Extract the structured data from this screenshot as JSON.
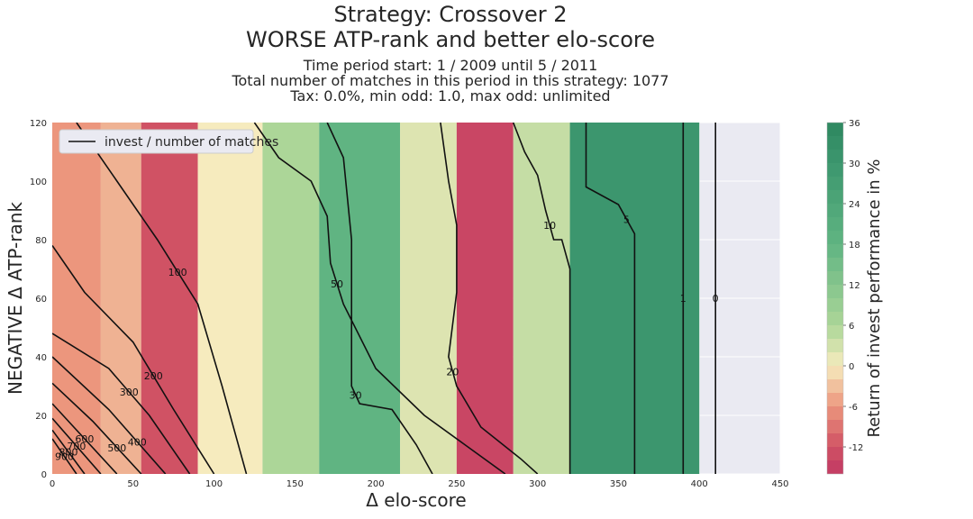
{
  "header": {
    "title_line1": "Strategy: Crossover 2",
    "title_line2": "WORSE ATP-rank and better elo-score",
    "subtitle_line1": "Time period start: 1 / 2009 until 5 / 2011",
    "subtitle_line2": "Total number of matches in this period in this strategy: 1077",
    "subtitle_line3": "Tax: 0.0%, min odd: 1.0, max odd: unlimited"
  },
  "chart_data": {
    "type": "heatmap",
    "xlabel": "Δ elo-score",
    "ylabel": "NEGATIVE Δ ATP-rank",
    "xlim": [
      0,
      450
    ],
    "ylim": [
      0,
      120
    ],
    "x_ticks": [
      0,
      50,
      100,
      150,
      200,
      250,
      300,
      350,
      400,
      450
    ],
    "y_ticks": [
      0,
      20,
      40,
      60,
      80,
      100,
      120
    ],
    "colorbar": {
      "label": "Return of invest performance in %",
      "ticks": [
        -12,
        -6,
        0,
        6,
        12,
        18,
        24,
        30,
        36
      ],
      "range": [
        -16,
        36
      ]
    },
    "legend": {
      "entry": "invest / number of matches",
      "position": "top-left"
    },
    "return_bands": [
      {
        "x_range": [
          0,
          30
        ],
        "value": -6
      },
      {
        "x_range": [
          30,
          55
        ],
        "value": -4
      },
      {
        "x_range": [
          55,
          90
        ],
        "value": -12
      },
      {
        "x_range": [
          90,
          130
        ],
        "value": 0
      },
      {
        "x_range": [
          130,
          165
        ],
        "value": 6
      },
      {
        "x_range": [
          165,
          215
        ],
        "value": 18
      },
      {
        "x_range": [
          215,
          250
        ],
        "value": 2
      },
      {
        "x_range": [
          250,
          285
        ],
        "value": -14
      },
      {
        "x_range": [
          285,
          320
        ],
        "value": 4
      },
      {
        "x_range": [
          320,
          400
        ],
        "value": 30
      }
    ],
    "count_contours": [
      {
        "label": "900",
        "points": [
          [
            0,
            12
          ],
          [
            15,
            0
          ]
        ]
      },
      {
        "label": "800",
        "points": [
          [
            0,
            15
          ],
          [
            20,
            0
          ]
        ]
      },
      {
        "label": "700",
        "points": [
          [
            0,
            19
          ],
          [
            30,
            0
          ]
        ]
      },
      {
        "label": "600",
        "points": [
          [
            0,
            24
          ],
          [
            40,
            0
          ]
        ]
      },
      {
        "label": "500",
        "points": [
          [
            0,
            31
          ],
          [
            25,
            18
          ],
          [
            55,
            0
          ]
        ]
      },
      {
        "label": "400",
        "points": [
          [
            0,
            40
          ],
          [
            35,
            22
          ],
          [
            70,
            0
          ]
        ]
      },
      {
        "label": "300",
        "points": [
          [
            0,
            48
          ],
          [
            35,
            36
          ],
          [
            60,
            20
          ],
          [
            85,
            0
          ]
        ]
      },
      {
        "label": "200",
        "points": [
          [
            0,
            78
          ],
          [
            20,
            62
          ],
          [
            50,
            45
          ],
          [
            75,
            22
          ],
          [
            100,
            0
          ]
        ]
      },
      {
        "label": "100",
        "points": [
          [
            15,
            120
          ],
          [
            40,
            100
          ],
          [
            65,
            80
          ],
          [
            90,
            58
          ],
          [
            105,
            30
          ],
          [
            120,
            0
          ]
        ]
      },
      {
        "label": "50",
        "points": [
          [
            125,
            120
          ],
          [
            140,
            108
          ],
          [
            160,
            100
          ],
          [
            170,
            88
          ],
          [
            172,
            72
          ],
          [
            180,
            58
          ],
          [
            200,
            36
          ],
          [
            230,
            20
          ],
          [
            255,
            10
          ],
          [
            280,
            0
          ]
        ]
      },
      {
        "label": "30",
        "points": [
          [
            170,
            120
          ],
          [
            180,
            108
          ],
          [
            185,
            80
          ],
          [
            185,
            60
          ],
          [
            185,
            30
          ],
          [
            190,
            24
          ],
          [
            210,
            22
          ],
          [
            225,
            10
          ],
          [
            235,
            0
          ]
        ]
      },
      {
        "label": "20",
        "points": [
          [
            240,
            120
          ],
          [
            245,
            100
          ],
          [
            250,
            85
          ],
          [
            250,
            62
          ],
          [
            245,
            40
          ],
          [
            250,
            30
          ],
          [
            265,
            16
          ],
          [
            290,
            5
          ],
          [
            300,
            0
          ]
        ]
      },
      {
        "label": "10",
        "points": [
          [
            285,
            120
          ],
          [
            292,
            110
          ],
          [
            300,
            102
          ],
          [
            305,
            90
          ],
          [
            310,
            80
          ],
          [
            315,
            80
          ],
          [
            320,
            70
          ],
          [
            320,
            0
          ]
        ]
      },
      {
        "label": "5",
        "points": [
          [
            330,
            120
          ],
          [
            330,
            98
          ],
          [
            350,
            92
          ],
          [
            360,
            82
          ],
          [
            360,
            0
          ]
        ]
      },
      {
        "label": "1",
        "points": [
          [
            390,
            120
          ],
          [
            390,
            0
          ]
        ]
      },
      {
        "label": "0",
        "points": [
          [
            410,
            120
          ],
          [
            410,
            0
          ]
        ]
      }
    ]
  }
}
